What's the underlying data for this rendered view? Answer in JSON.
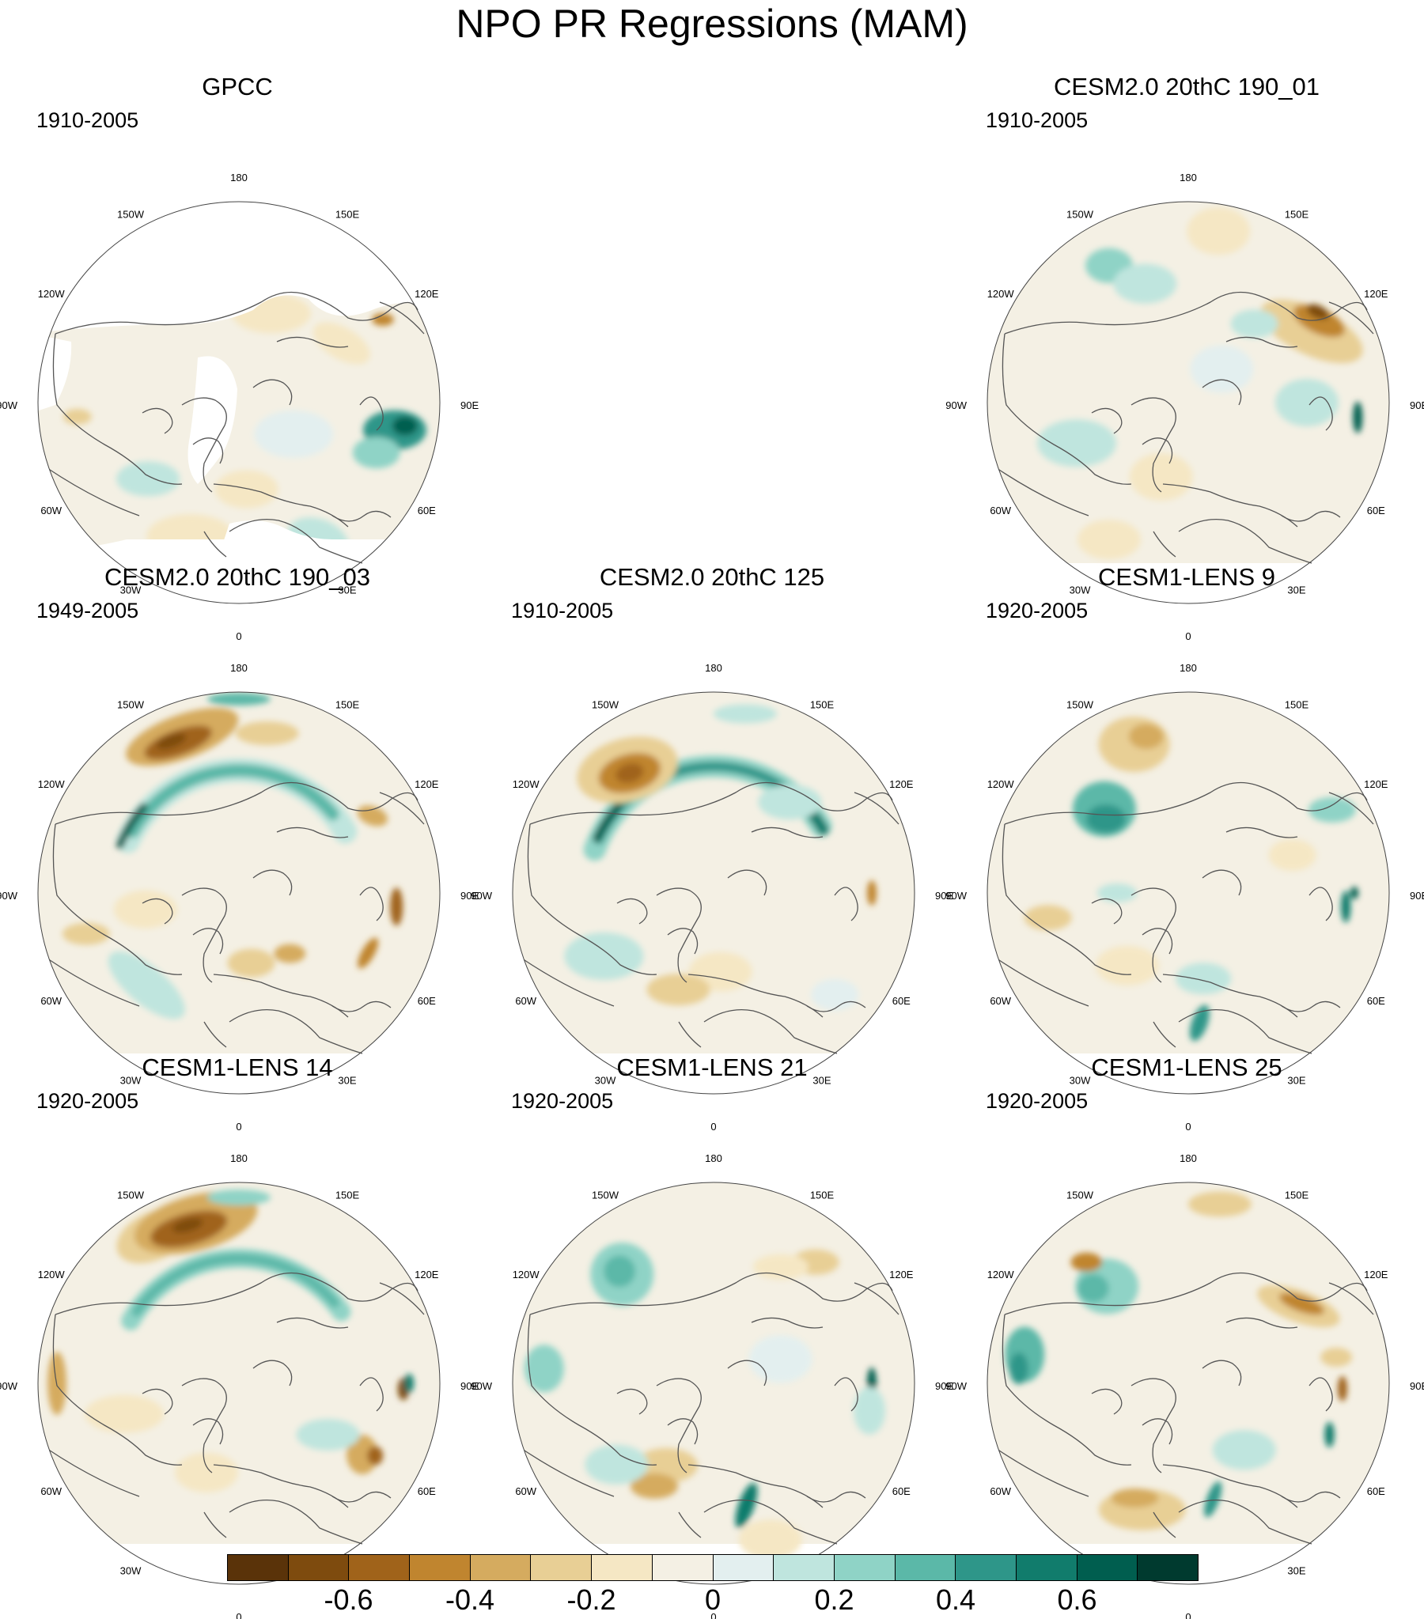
{
  "title": "NPO PR Regressions (MAM)",
  "map_labels": {
    "n": "180",
    "nne": "150E",
    "ene": "120E",
    "e": "90E",
    "ese": "60E",
    "sse": "30E",
    "s": "0",
    "ssw": "30W",
    "wsw": "60W",
    "w": "90W",
    "wnw": "120W",
    "nnw": "150W"
  },
  "panels": [
    {
      "id": "gpcc",
      "title": "GPCC",
      "period": "1910-2005"
    },
    {
      "id": "cesm2-190-01",
      "title": "CESM2.0 20thC 190_01",
      "period": "1910-2005"
    },
    {
      "id": "cesm2-190-03",
      "title": "CESM2.0 20thC 190_03",
      "period": "1949-2005"
    },
    {
      "id": "cesm2-125",
      "title": "CESM2.0 20thC 125",
      "period": "1910-2005"
    },
    {
      "id": "cesm1-lens-9",
      "title": "CESM1-LENS 9",
      "period": "1920-2005"
    },
    {
      "id": "cesm1-lens-14",
      "title": "CESM1-LENS 14",
      "period": "1920-2005"
    },
    {
      "id": "cesm1-lens-21",
      "title": "CESM1-LENS 21",
      "period": "1920-2005"
    },
    {
      "id": "cesm1-lens-25",
      "title": "CESM1-LENS 25",
      "period": "1920-2005"
    }
  ],
  "colorbar": {
    "colors": [
      "#5a3309",
      "#7e4b0e",
      "#a0631a",
      "#c0852f",
      "#d5ab5f",
      "#e8cf95",
      "#f5e7c4",
      "#f4f0e4",
      "#e3efef",
      "#bfe5de",
      "#8fd3c6",
      "#5bb8a8",
      "#2e9689",
      "#117c6c",
      "#005e4f",
      "#003a2f"
    ],
    "labels": [
      "-0.6",
      "-0.4",
      "-0.2",
      "0",
      "0.2",
      "0.4",
      "0.6"
    ],
    "label_values": [
      -0.6,
      -0.4,
      -0.2,
      0,
      0.2,
      0.4,
      0.6
    ],
    "range": [
      -0.8,
      0.8
    ]
  }
}
